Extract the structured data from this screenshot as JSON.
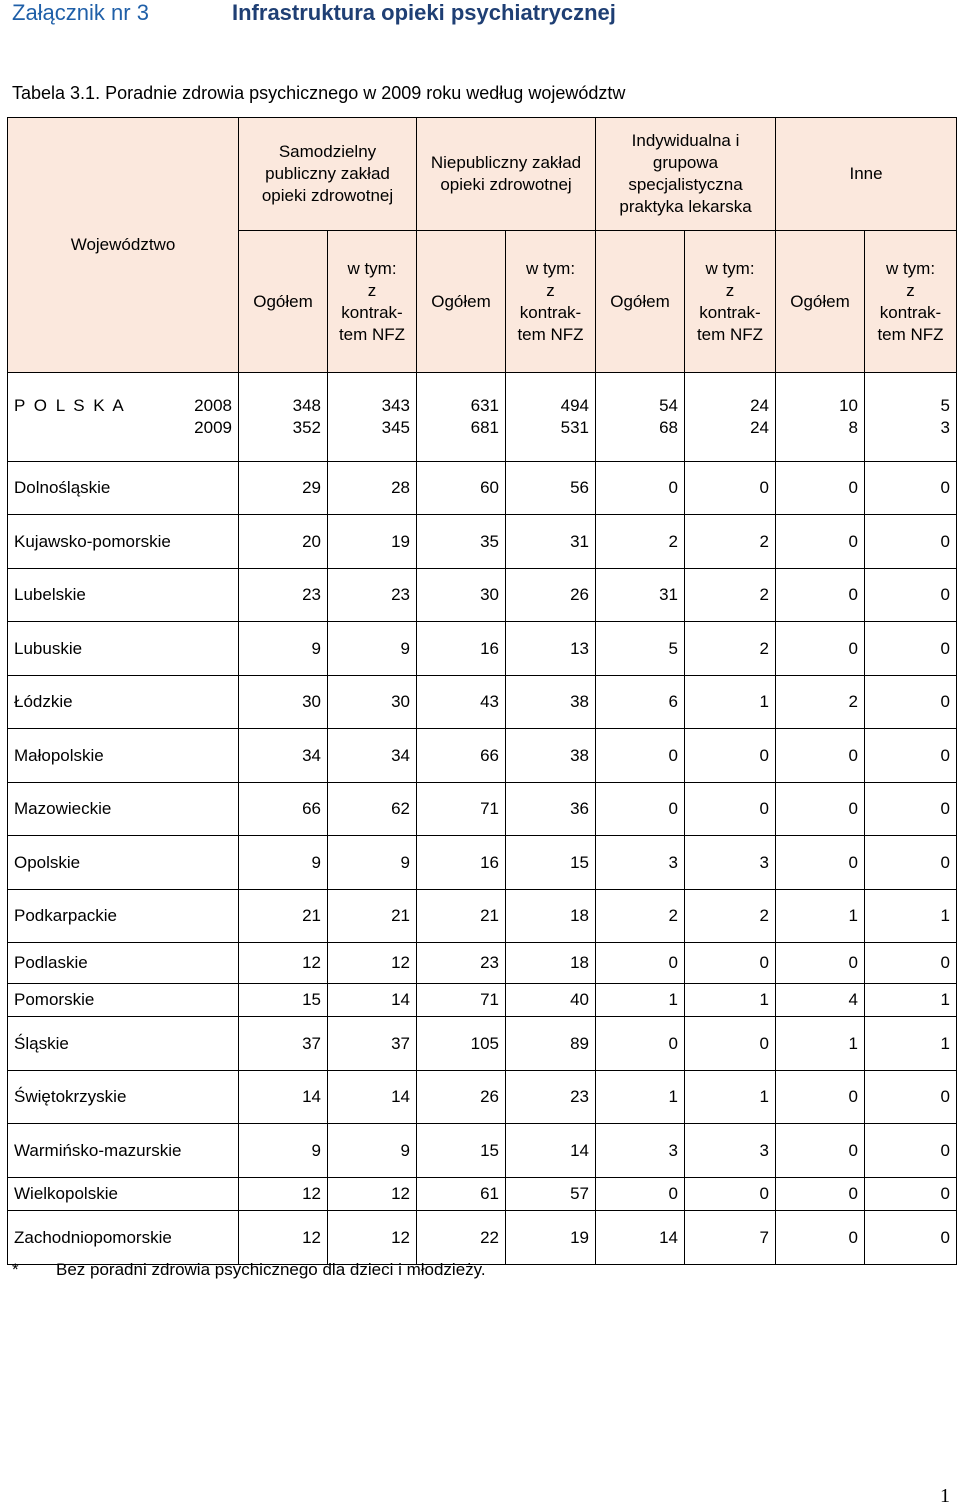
{
  "header": {
    "annex": "Załącznik nr 3",
    "section": "Infrastruktura opieki psychiatrycznej"
  },
  "table_title": "Tabela 3.1. Poradnie zdrowia psychicznego w 2009 roku według województw",
  "columns": {
    "region": "Województwo",
    "groups": [
      "Samodzielny publiczny zakład opieki zdrowotnej",
      "Niepubliczny zakład opieki zdrowotnej",
      "Indywidualna i grupowa specjalistyczna praktyka lekarska",
      "Inne"
    ],
    "total": "Ogółem",
    "nfz_line1": "w tym:",
    "nfz_line2": "z",
    "nfz_line3": "kontrak-",
    "nfz_line4": "tem NFZ"
  },
  "poland": {
    "name": "P O L S K A",
    "year1": "2008",
    "year2": "2009",
    "values_2008": [
      "348",
      "343",
      "631",
      "494",
      "54",
      "24",
      "10",
      "5"
    ],
    "values_2009": [
      "352",
      "345",
      "681",
      "531",
      "68",
      "24",
      "8",
      "3"
    ]
  },
  "rows": [
    {
      "name": "Dolnośląskie",
      "values": [
        "29",
        "28",
        "60",
        "56",
        "0",
        "0",
        "0",
        "0"
      ]
    },
    {
      "name": "Kujawsko-pomorskie",
      "values": [
        "20",
        "19",
        "35",
        "31",
        "2",
        "2",
        "0",
        "0"
      ]
    },
    {
      "name": "Lubelskie",
      "values": [
        "23",
        "23",
        "30",
        "26",
        "31",
        "2",
        "0",
        "0"
      ]
    },
    {
      "name": "Lubuskie",
      "values": [
        "9",
        "9",
        "16",
        "13",
        "5",
        "2",
        "0",
        "0"
      ]
    },
    {
      "name": "Łódzkie",
      "values": [
        "30",
        "30",
        "43",
        "38",
        "6",
        "1",
        "2",
        "0"
      ]
    },
    {
      "name": "Małopolskie",
      "values": [
        "34",
        "34",
        "66",
        "38",
        "0",
        "0",
        "0",
        "0"
      ]
    },
    {
      "name": "Mazowieckie",
      "values": [
        "66",
        "62",
        "71",
        "36",
        "0",
        "0",
        "0",
        "0"
      ]
    },
    {
      "name": "Opolskie",
      "values": [
        "9",
        "9",
        "16",
        "15",
        "3",
        "3",
        "0",
        "0"
      ]
    },
    {
      "name": "Podkarpackie",
      "values": [
        "21",
        "21",
        "21",
        "18",
        "2",
        "2",
        "1",
        "1"
      ]
    },
    {
      "name": "Podlaskie",
      "values": [
        "12",
        "12",
        "23",
        "18",
        "0",
        "0",
        "0",
        "0"
      ]
    },
    {
      "name": "Pomorskie",
      "values": [
        "15",
        "14",
        "71",
        "40",
        "1",
        "1",
        "4",
        "1"
      ]
    },
    {
      "name": "Śląskie",
      "values": [
        "37",
        "37",
        "105",
        "89",
        "0",
        "0",
        "1",
        "1"
      ]
    },
    {
      "name": "Świętokrzyskie",
      "values": [
        "14",
        "14",
        "26",
        "23",
        "1",
        "1",
        "0",
        "0"
      ]
    },
    {
      "name": "Warmińsko-mazurskie",
      "values": [
        "9",
        "9",
        "15",
        "14",
        "3",
        "3",
        "0",
        "0"
      ]
    },
    {
      "name": "Wielkopolskie",
      "values": [
        "12",
        "12",
        "61",
        "57",
        "0",
        "0",
        "0",
        "0"
      ]
    },
    {
      "name": "Zachodniopomorskie",
      "values": [
        "12",
        "12",
        "22",
        "19",
        "14",
        "7",
        "0",
        "0"
      ]
    }
  ],
  "footnote": {
    "marker": "*",
    "text": "Bez poradni zdrowia psychicznego dla dzieci i młodzieży."
  },
  "page_number": "1",
  "colors": {
    "annex": "#1f5fa8",
    "section": "#1f3f74",
    "header_fill": "#fbe8dd"
  }
}
